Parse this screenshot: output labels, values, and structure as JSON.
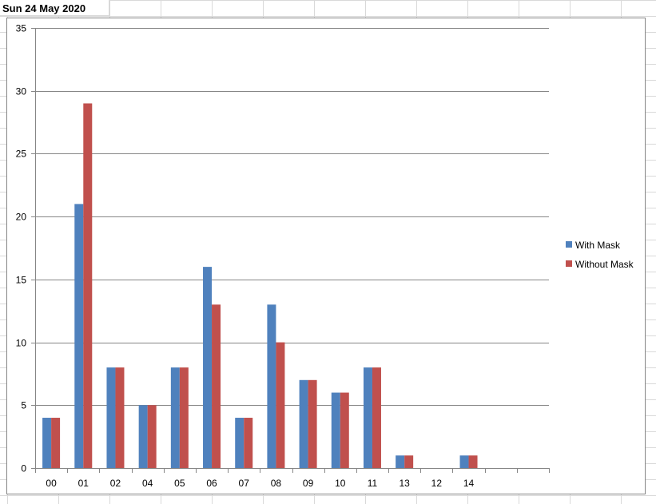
{
  "sheet": {
    "title": "Sun 24 May 2020"
  },
  "colors": {
    "with_mask": "#4f81bd",
    "without_mask": "#c0504d",
    "gridline": "#868686",
    "axis": "#868686"
  },
  "chart_data": {
    "type": "bar",
    "title": "",
    "xlabel": "",
    "ylabel": "",
    "ylim": [
      0,
      35
    ],
    "yticks": [
      0,
      5,
      10,
      15,
      20,
      25,
      30,
      35
    ],
    "grid": true,
    "legend_position": "right",
    "categories": [
      "00",
      "01",
      "02",
      "04",
      "05",
      "06",
      "07",
      "08",
      "09",
      "10",
      "11",
      "13",
      "12",
      "14",
      "",
      ""
    ],
    "series": [
      {
        "name": "With Mask",
        "color": "#4f81bd",
        "values": [
          4,
          21,
          8,
          5,
          8,
          16,
          4,
          13,
          7,
          6,
          8,
          1,
          0,
          1,
          0,
          0
        ]
      },
      {
        "name": "Without Mask",
        "color": "#c0504d",
        "values": [
          4,
          29,
          8,
          5,
          8,
          13,
          4,
          10,
          7,
          6,
          8,
          1,
          0,
          1,
          0,
          0
        ]
      }
    ]
  }
}
